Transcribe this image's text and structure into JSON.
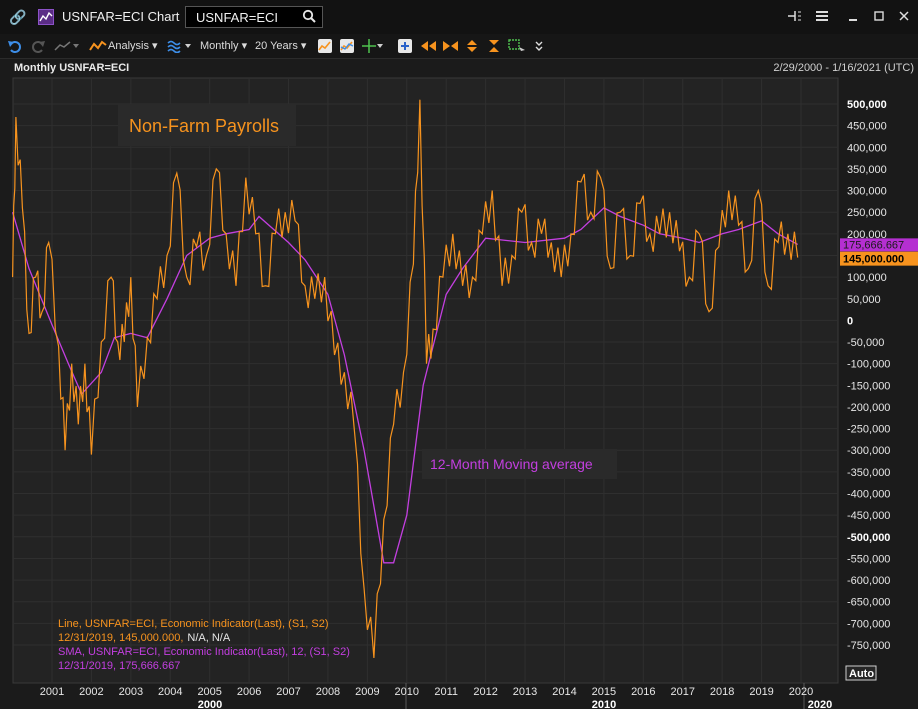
{
  "titlebar": {
    "app_title": "USNFAR=ECI Chart",
    "search_value": "USNFAR=ECI",
    "icons": [
      "link-icon",
      "chart-app-icon",
      "search-icon",
      "pin-icon",
      "menu-icon",
      "minimize-icon",
      "maximize-icon",
      "close-icon"
    ]
  },
  "toolbar": {
    "analysis_label": "Analysis",
    "interval_label": "Monthly",
    "period_label": "20 Years",
    "icons": [
      "undo-icon",
      "redo-icon",
      "line-style-icon",
      "analysis-icon",
      "wave-icon",
      "line-chart-icon",
      "compare-chart-icon",
      "crosshair-icon",
      "add-icon",
      "scroll-left-icon",
      "scroll-right-icon",
      "zoom-icon",
      "fit-icon",
      "select-icon",
      "more-icon"
    ]
  },
  "chart_header": {
    "title": "Monthly USNFAR=ECI",
    "date_range": "2/29/2000 - 1/16/2021 (UTC)"
  },
  "chart_data": {
    "type": "line",
    "x_range": [
      "2000-01",
      "2020-03"
    ],
    "ylim": [
      -800000,
      550000
    ],
    "y_ticks": [
      500000,
      450000,
      400000,
      350000,
      300000,
      250000,
      200000,
      150000,
      100000,
      50000,
      0,
      -50000,
      -100000,
      -150000,
      -200000,
      -250000,
      -300000,
      -350000,
      -400000,
      -450000,
      -500000,
      -550000,
      -600000,
      -650000,
      -700000,
      -750000
    ],
    "y_tick_labels": [
      "500,000",
      "450,000",
      "400,000",
      "350,000",
      "300,000",
      "250,000",
      "200,000",
      "150,000",
      "100,000",
      "50,000",
      "0",
      "-50,000",
      "-100,000",
      "-150,000",
      "-200,000",
      "-250,000",
      "-300,000",
      "-350,000",
      "-400,000",
      "-450,000",
      "-500,000",
      "-550,000",
      "-600,000",
      "-650,000",
      "-700,000",
      "-750,000"
    ],
    "bold_ticks": [
      "500,000",
      "0",
      "-500,000"
    ],
    "x_ticks": [
      "2001",
      "2002",
      "2003",
      "2004",
      "2005",
      "2006",
      "2007",
      "2008",
      "2009",
      "2010",
      "2011",
      "2012",
      "2013",
      "2014",
      "2015",
      "2016",
      "2017",
      "2018",
      "2019",
      "2020"
    ],
    "x_major_labels": [
      "2000",
      "2010",
      "2020"
    ],
    "grid": true,
    "annotations": [
      {
        "text": "Non-Farm Payrolls",
        "color": "#f7931e"
      },
      {
        "text": "12-Month Moving average",
        "color": "#c33fe0"
      }
    ],
    "last_value_labels": [
      {
        "text": "175,666.667",
        "value": 175666.667,
        "color": "#b52fd1"
      },
      {
        "text": "145,000.000",
        "value": 145000,
        "color": "#f7931e"
      }
    ],
    "legend": {
      "line1_title": "Line, USNFAR=ECI, Economic Indicator(Last),  (S1, S2)",
      "line1_value": "12/31/2019,  145,000.000,",
      "line1_value_extra": "N/A, N/A",
      "line2_title": "SMA, USNFAR=ECI, Economic Indicator(Last),  12,  (S1, S2)",
      "line2_value": "12/31/2019,  175,666.667"
    },
    "auto_label": "Auto",
    "series": [
      {
        "name": "Line, USNFAR=ECI",
        "color": "#f7931e",
        "anchors": [
          [
            "2000-01",
            100000
          ],
          [
            "2000-02",
            470000
          ],
          [
            "2000-04",
            260000
          ],
          [
            "2000-06",
            -30000
          ],
          [
            "2000-08",
            100000
          ],
          [
            "2000-10",
            20000
          ],
          [
            "2000-12",
            180000
          ],
          [
            "2001-03",
            -60000
          ],
          [
            "2001-05",
            -300000
          ],
          [
            "2001-07",
            -100000
          ],
          [
            "2001-09",
            -240000
          ],
          [
            "2001-11",
            -100000
          ],
          [
            "2002-01",
            -310000
          ],
          [
            "2002-04",
            -50000
          ],
          [
            "2002-07",
            100000
          ],
          [
            "2002-09",
            -50000
          ],
          [
            "2002-11",
            -50000
          ],
          [
            "2003-01",
            100000
          ],
          [
            "2003-03",
            -200000
          ],
          [
            "2003-06",
            -40000
          ],
          [
            "2003-09",
            50000
          ],
          [
            "2003-12",
            150000
          ],
          [
            "2004-03",
            340000
          ],
          [
            "2004-06",
            100000
          ],
          [
            "2004-09",
            170000
          ],
          [
            "2004-12",
            150000
          ],
          [
            "2005-03",
            350000
          ],
          [
            "2005-06",
            200000
          ],
          [
            "2005-09",
            80000
          ],
          [
            "2005-12",
            330000
          ],
          [
            "2006-03",
            200000
          ],
          [
            "2006-06",
            80000
          ],
          [
            "2006-09",
            200000
          ],
          [
            "2006-12",
            250000
          ],
          [
            "2007-03",
            230000
          ],
          [
            "2007-06",
            80000
          ],
          [
            "2007-09",
            50000
          ],
          [
            "2007-12",
            100000
          ],
          [
            "2008-03",
            -80000
          ],
          [
            "2008-06",
            -120000
          ],
          [
            "2008-09",
            -250000
          ],
          [
            "2008-12",
            -620000
          ],
          [
            "2009-03",
            -780000
          ],
          [
            "2009-06",
            -460000
          ],
          [
            "2009-09",
            -240000
          ],
          [
            "2009-12",
            -120000
          ],
          [
            "2010-03",
            130000
          ],
          [
            "2010-05",
            510000
          ],
          [
            "2010-07",
            -100000
          ],
          [
            "2010-09",
            -20000
          ],
          [
            "2010-12",
            100000
          ],
          [
            "2011-03",
            200000
          ],
          [
            "2011-06",
            80000
          ],
          [
            "2011-09",
            100000
          ],
          [
            "2011-12",
            200000
          ],
          [
            "2012-03",
            300000
          ],
          [
            "2012-06",
            80000
          ],
          [
            "2012-09",
            150000
          ],
          [
            "2012-12",
            250000
          ],
          [
            "2013-03",
            180000
          ],
          [
            "2013-06",
            200000
          ],
          [
            "2013-09",
            180000
          ],
          [
            "2013-12",
            100000
          ],
          [
            "2014-03",
            200000
          ],
          [
            "2014-06",
            320000
          ],
          [
            "2014-09",
            250000
          ],
          [
            "2014-12",
            330000
          ],
          [
            "2015-03",
            120000
          ],
          [
            "2015-06",
            250000
          ],
          [
            "2015-09",
            150000
          ],
          [
            "2015-12",
            270000
          ],
          [
            "2016-03",
            200000
          ],
          [
            "2016-06",
            200000
          ],
          [
            "2016-09",
            250000
          ],
          [
            "2016-12",
            160000
          ],
          [
            "2017-03",
            100000
          ],
          [
            "2017-06",
            200000
          ],
          [
            "2017-09",
            20000
          ],
          [
            "2017-12",
            170000
          ],
          [
            "2018-03",
            300000
          ],
          [
            "2018-06",
            220000
          ],
          [
            "2018-09",
            120000
          ],
          [
            "2018-12",
            300000
          ],
          [
            "2019-03",
            80000
          ],
          [
            "2019-06",
            180000
          ],
          [
            "2019-09",
            200000
          ],
          [
            "2019-12",
            145000
          ]
        ]
      },
      {
        "name": "SMA, USNFAR=ECI, 12",
        "color": "#c33fe0",
        "anchors": [
          [
            "2000-01",
            250000
          ],
          [
            "2000-06",
            120000
          ],
          [
            "2001-01",
            -10000
          ],
          [
            "2001-06",
            -100000
          ],
          [
            "2001-10",
            -170000
          ],
          [
            "2002-04",
            -120000
          ],
          [
            "2002-08",
            -40000
          ],
          [
            "2003-01",
            -30000
          ],
          [
            "2003-06",
            -40000
          ],
          [
            "2003-12",
            50000
          ],
          [
            "2004-06",
            150000
          ],
          [
            "2005-01",
            190000
          ],
          [
            "2005-06",
            200000
          ],
          [
            "2006-01",
            210000
          ],
          [
            "2006-04",
            240000
          ],
          [
            "2007-01",
            180000
          ],
          [
            "2007-06",
            140000
          ],
          [
            "2008-01",
            60000
          ],
          [
            "2008-06",
            -80000
          ],
          [
            "2008-12",
            -300000
          ],
          [
            "2009-06",
            -560000
          ],
          [
            "2009-09",
            -560000
          ],
          [
            "2010-01",
            -450000
          ],
          [
            "2010-06",
            -150000
          ],
          [
            "2011-01",
            60000
          ],
          [
            "2011-06",
            120000
          ],
          [
            "2012-01",
            190000
          ],
          [
            "2013-01",
            180000
          ],
          [
            "2014-01",
            190000
          ],
          [
            "2014-06",
            210000
          ],
          [
            "2015-01",
            260000
          ],
          [
            "2015-06",
            240000
          ],
          [
            "2016-01",
            220000
          ],
          [
            "2016-06",
            200000
          ],
          [
            "2017-01",
            190000
          ],
          [
            "2017-06",
            180000
          ],
          [
            "2018-01",
            200000
          ],
          [
            "2018-06",
            210000
          ],
          [
            "2019-01",
            230000
          ],
          [
            "2019-06",
            200000
          ],
          [
            "2019-12",
            175667
          ]
        ]
      }
    ]
  }
}
